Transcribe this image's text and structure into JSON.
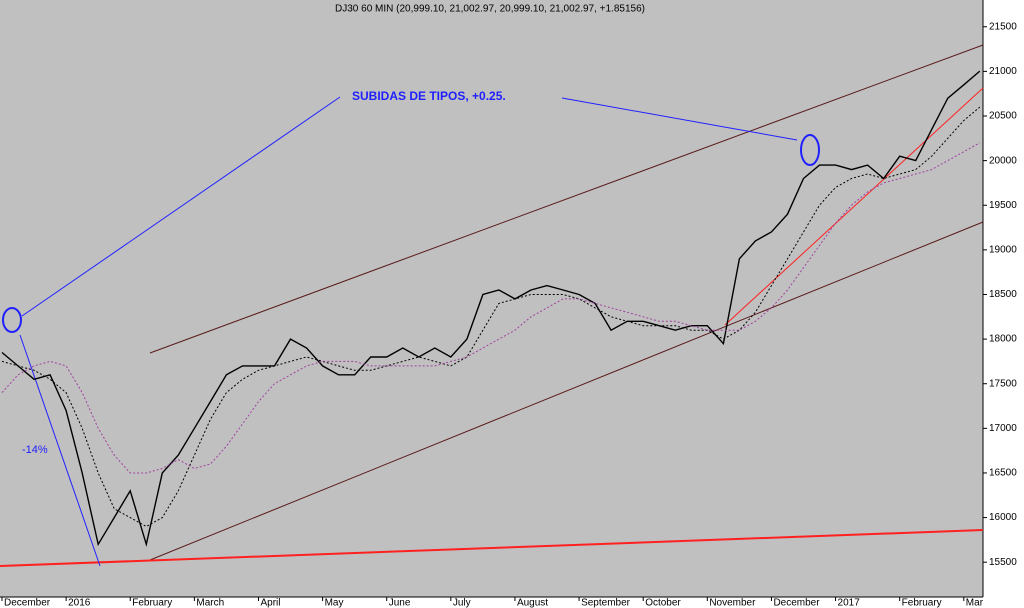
{
  "chart_data": {
    "type": "line",
    "title": "DJ30 60 MIN (20,999.10, 21,002.97, 20,999.10, 21,002.97, +1.85156)",
    "annotations": [
      "SUBIDAS DE TIPOS, +0.25.",
      "-14%"
    ],
    "categories": [
      "December",
      null,
      null,
      null,
      "2016",
      null,
      null,
      null,
      "February",
      null,
      null,
      null,
      "March",
      null,
      null,
      null,
      "April",
      null,
      null,
      null,
      "May",
      null,
      null,
      null,
      "June",
      null,
      null,
      null,
      "July",
      null,
      null,
      null,
      "August",
      null,
      null,
      null,
      "September",
      null,
      null,
      null,
      "October",
      null,
      null,
      null,
      "November",
      null,
      null,
      null,
      "December",
      null,
      null,
      null,
      "2017",
      null,
      null,
      null,
      "February",
      null,
      null,
      null,
      "Mar",
      null
    ],
    "series": [
      {
        "color": "#000000",
        "values": [
          17850,
          17700,
          17550,
          17600,
          17200,
          16500,
          15700,
          16000,
          16300,
          15700,
          16500,
          16700,
          17000,
          17300,
          17600,
          17700,
          17700,
          17700,
          18000,
          17900,
          17700,
          17600,
          17600,
          17800,
          17800,
          17900,
          17800,
          17900,
          17800,
          18000,
          18500,
          18550,
          18450,
          18550,
          18600,
          18550,
          18500,
          18400,
          18100,
          18200,
          18200,
          18150,
          18100,
          18150,
          18150,
          17950,
          18900,
          19100,
          19200,
          19400,
          19800,
          19950,
          19950,
          19900,
          19950,
          19800,
          20050,
          20000,
          20350,
          20700,
          20850,
          21003
        ]
      },
      {
        "color": "#000000",
        "values": [
          17750,
          17700,
          17650,
          17550,
          17400,
          17000,
          16500,
          16100,
          16000,
          15900,
          16000,
          16300,
          16700,
          17100,
          17400,
          17550,
          17650,
          17700,
          17750,
          17800,
          17750,
          17700,
          17650,
          17650,
          17700,
          17750,
          17800,
          17750,
          17700,
          17800,
          18100,
          18400,
          18450,
          18500,
          18500,
          18500,
          18450,
          18350,
          18250,
          18200,
          18150,
          18150,
          18150,
          18100,
          18100,
          18000,
          18100,
          18300,
          18600,
          18900,
          19200,
          19500,
          19700,
          19800,
          19850,
          19800,
          19850,
          19900,
          20050,
          20250,
          20450,
          20600
        ]
      },
      {
        "color": "#a040a0",
        "values": [
          17400,
          17600,
          17700,
          17750,
          17700,
          17400,
          17000,
          16700,
          16500,
          16500,
          16550,
          16650,
          16550,
          16600,
          16800,
          17050,
          17300,
          17500,
          17600,
          17700,
          17750,
          17750,
          17750,
          17700,
          17700,
          17700,
          17700,
          17700,
          17750,
          17800,
          17900,
          18000,
          18100,
          18250,
          18350,
          18450,
          18450,
          18400,
          18350,
          18300,
          18250,
          18200,
          18200,
          18150,
          18100,
          18100,
          18100,
          18200,
          18350,
          18550,
          18800,
          19050,
          19300,
          19500,
          19650,
          19750,
          19800,
          19850,
          19900,
          20000,
          20100,
          20200
        ]
      }
    ],
    "ylim": [
      15110,
      21800
    ],
    "yticks": [
      15500,
      16000,
      16500,
      17000,
      17500,
      18000,
      18500,
      19000,
      19500,
      20000,
      20500,
      21000,
      21500
    ],
    "grid": false
  }
}
